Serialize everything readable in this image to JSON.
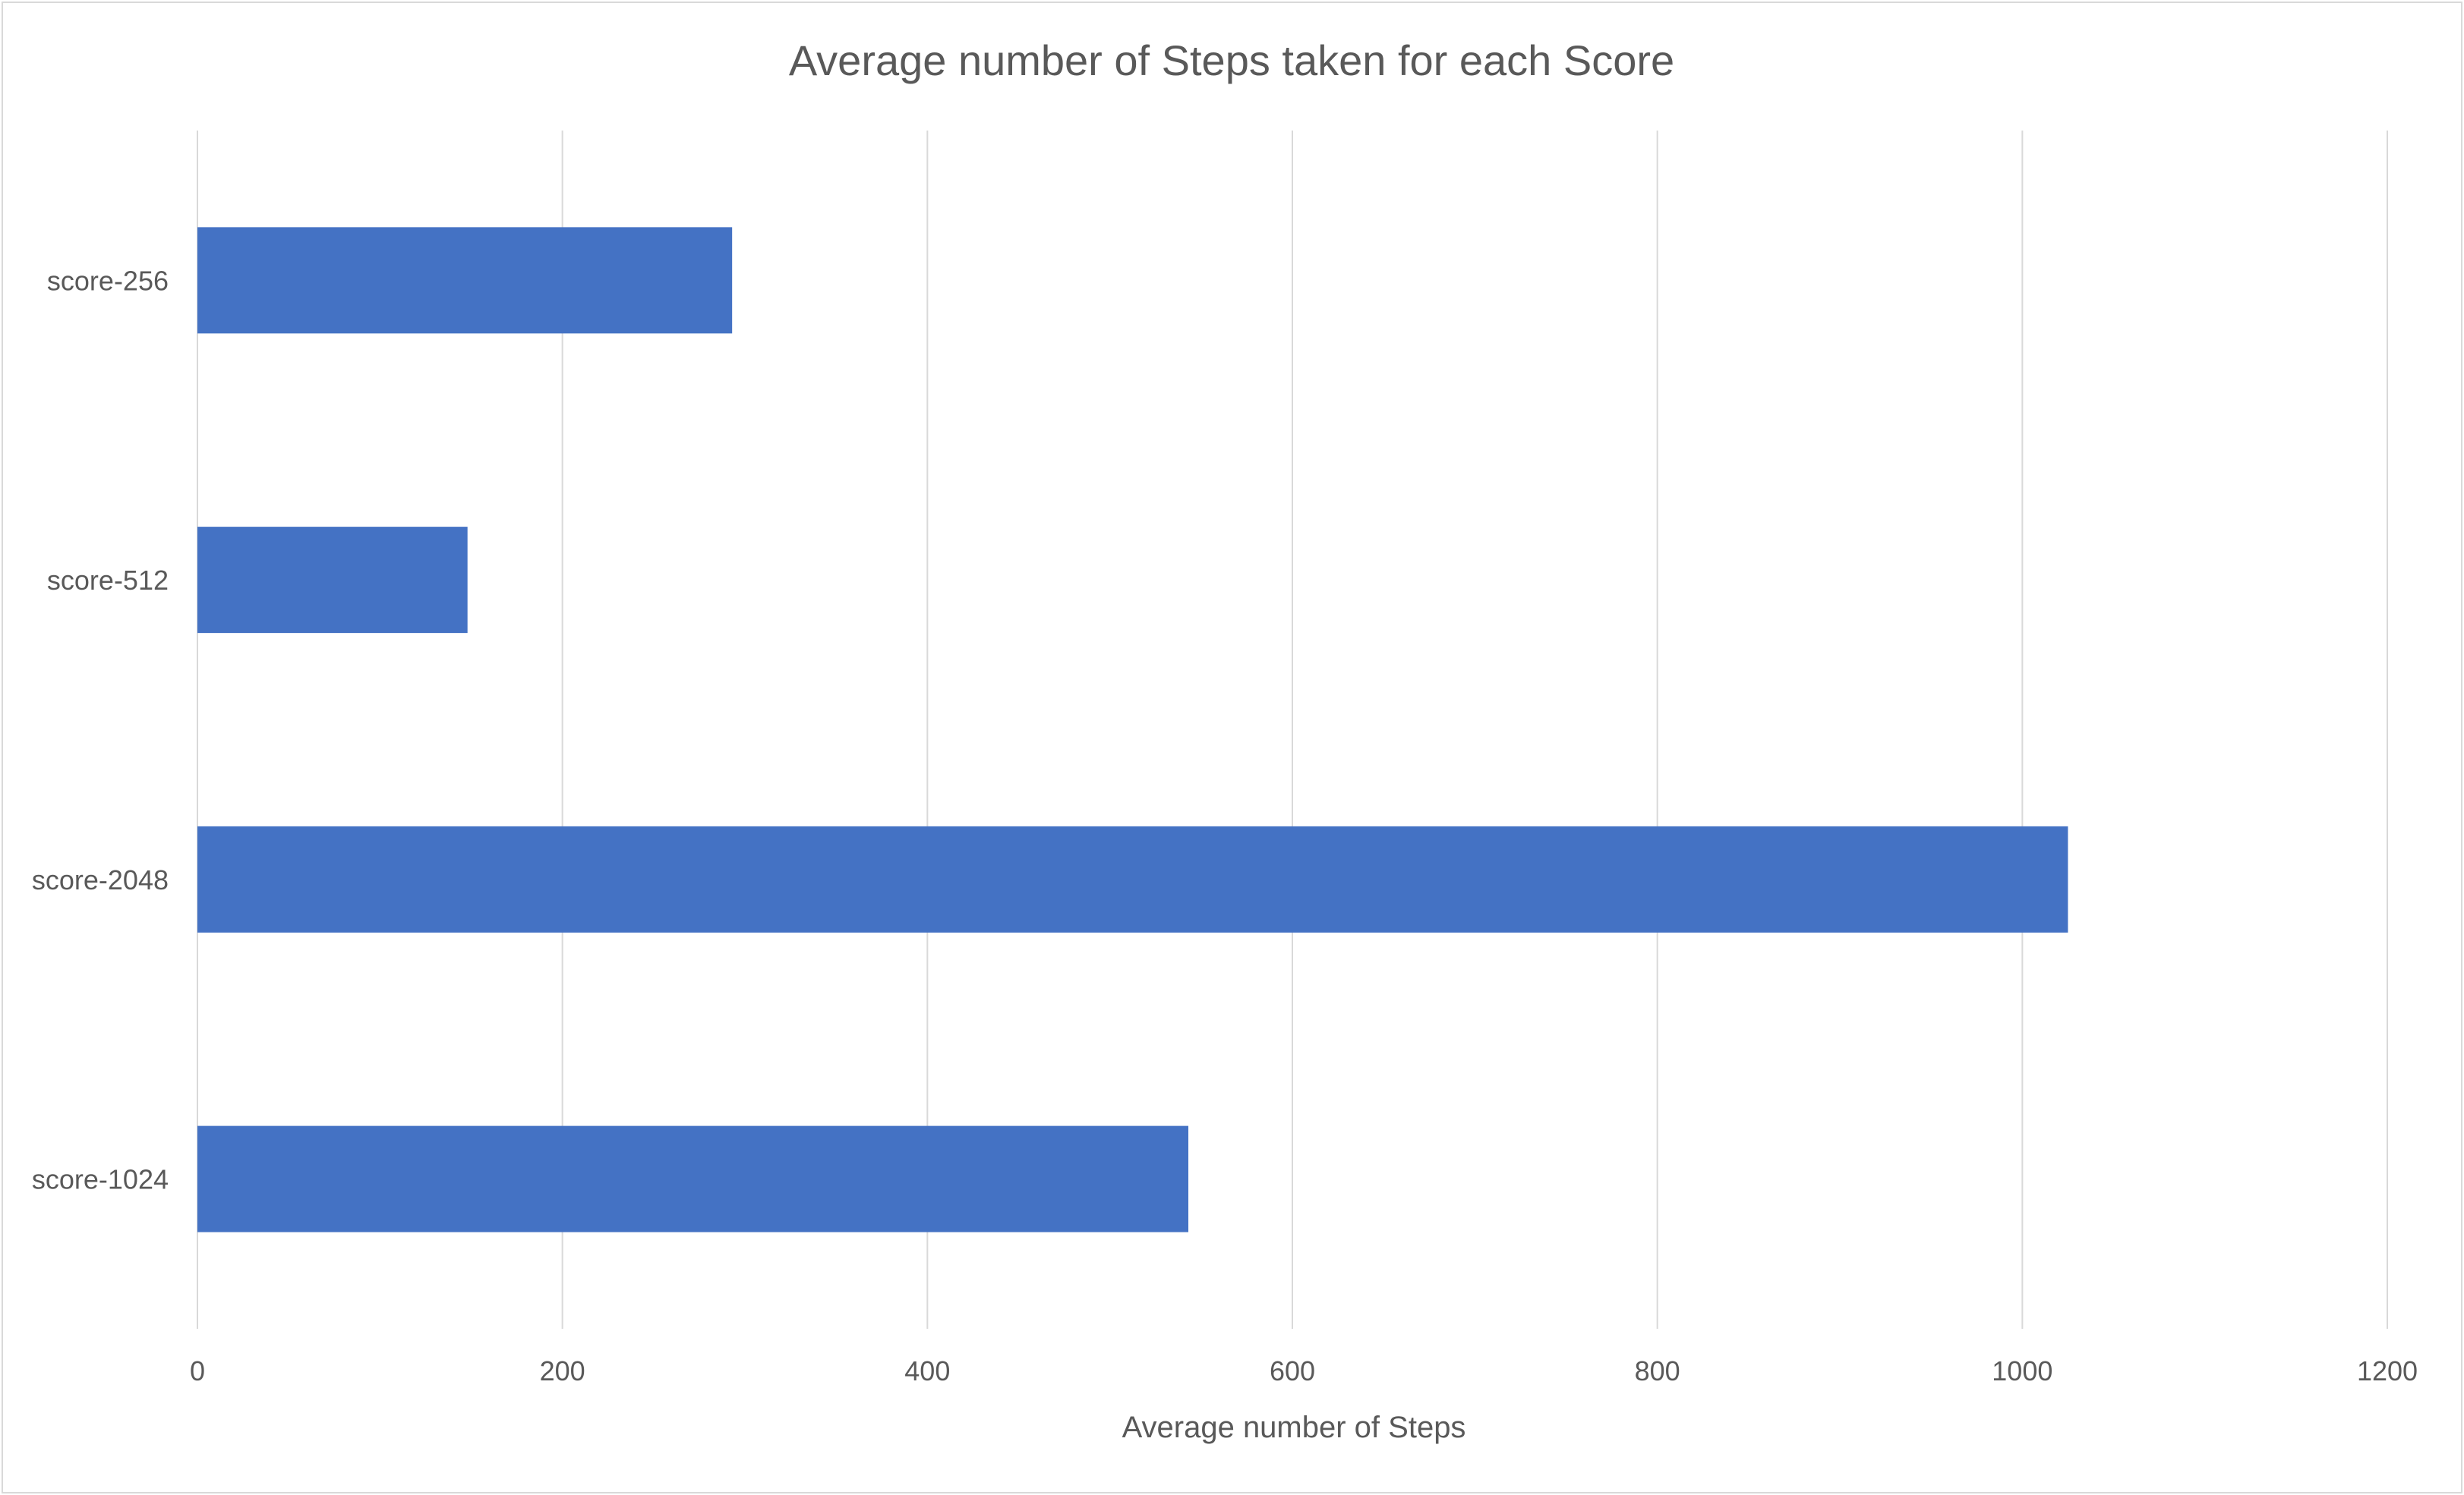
{
  "chart_data": {
    "type": "bar",
    "orientation": "horizontal",
    "title": "Average number of Steps taken for each Score",
    "xlabel": "Average number of Steps",
    "ylabel": "",
    "categories": [
      "score-256",
      "score-512",
      "score-2048",
      "score-1024"
    ],
    "values": [
      293,
      148,
      1025,
      543
    ],
    "xlim": [
      0,
      1200
    ],
    "x_ticks": [
      "0",
      "200",
      "400",
      "600",
      "800",
      "1000",
      "1200"
    ],
    "grid": true,
    "legend": "none",
    "bar_color": "#4472C4",
    "grid_color": "#d9d9d9",
    "text_color": "#595959"
  }
}
